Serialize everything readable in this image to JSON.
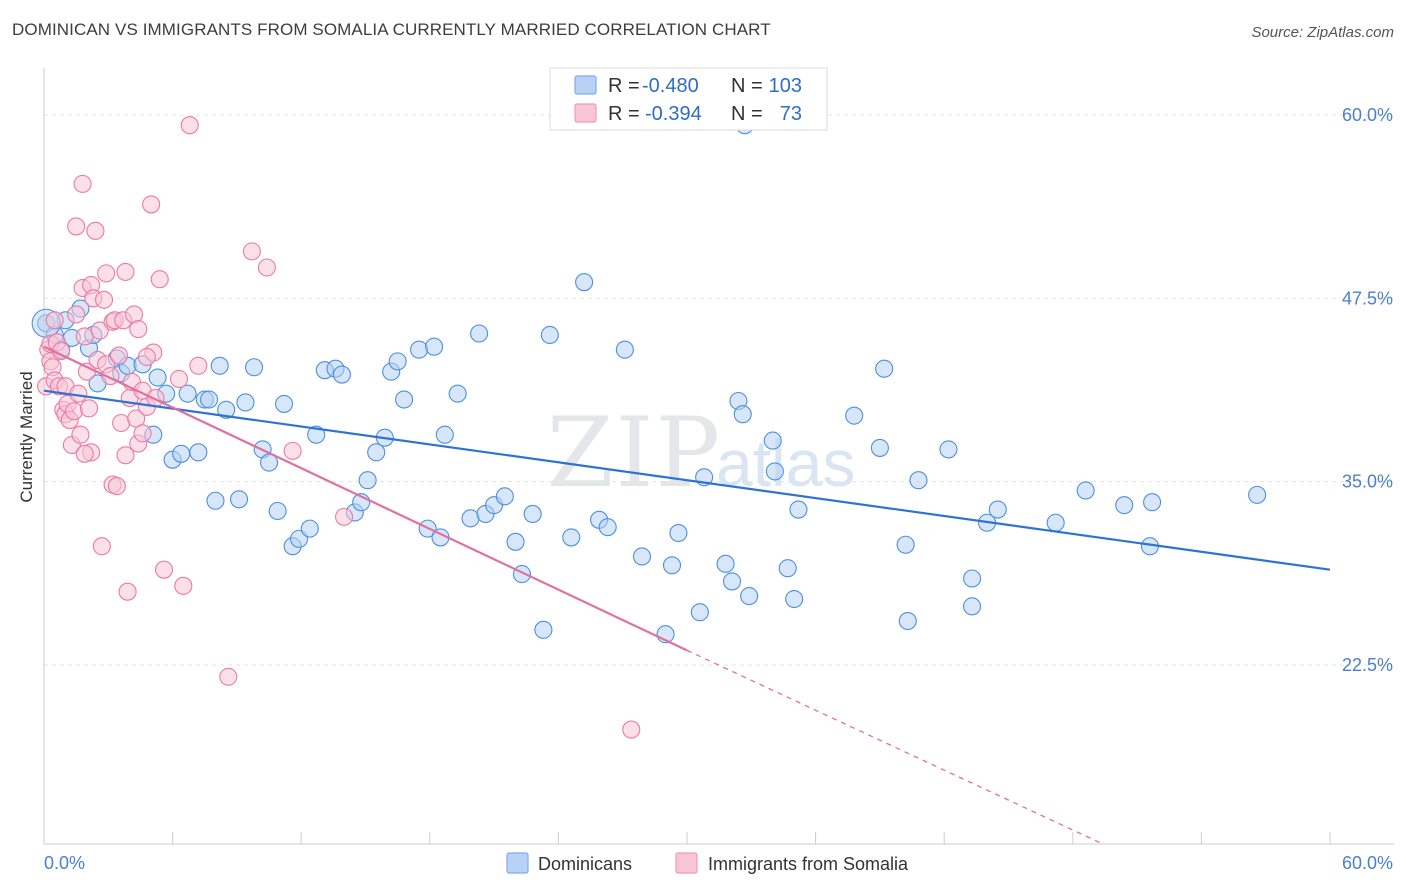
{
  "header": {
    "title": "DOMINICAN VS IMMIGRANTS FROM SOMALIA CURRENTLY MARRIED CORRELATION CHART",
    "source": "Source: ZipAtlas.com"
  },
  "watermark": {
    "part1": "ZIP",
    "part2": "atlas"
  },
  "legend_box": {
    "rows": [
      {
        "r_label": "R = ",
        "r_value": "-0.480",
        "n_label": "N = ",
        "n_value": "103",
        "color": "#7eaee9"
      },
      {
        "r_label": "R = ",
        "r_value": "-0.394",
        "n_label": "N = ",
        "n_value": "73",
        "color": "#f19ab8"
      }
    ]
  },
  "chart_data": {
    "type": "scatter",
    "title": "DOMINICAN VS IMMIGRANTS FROM SOMALIA CURRENTLY MARRIED CORRELATION CHART",
    "xlabel": "",
    "ylabel": "Currently Married",
    "xlim": [
      0,
      60
    ],
    "ylim": [
      10.3,
      63.2
    ],
    "x_tick_labels": [
      "0.0%",
      "60.0%"
    ],
    "y_ticks": [
      22.5,
      35.0,
      47.5,
      60.0
    ],
    "y_tick_labels": [
      "22.5%",
      "35.0%",
      "47.5%",
      "60.0%"
    ],
    "grid": true,
    "legend_position": "bottom",
    "colors": {
      "blue": "#4d8fdf",
      "blue_fill": "#b7d2f4",
      "pink": "#ec7aa4",
      "pink_fill": "#f8c6d7",
      "blue_line": "#2f73d2",
      "pink_line": "#e2709c",
      "axis_text": "#4a7fd0"
    },
    "series": [
      {
        "name": "Dominicans",
        "r": -0.48,
        "n": 103,
        "trend": {
          "x0": 0,
          "y0": 41.2,
          "x1": 60,
          "y1": 29.0
        },
        "points": [
          [
            0.1,
            45.8
          ],
          [
            0.5,
            45.0
          ],
          [
            0.8,
            44.0
          ],
          [
            1.0,
            46.0
          ],
          [
            1.3,
            44.8
          ],
          [
            1.7,
            46.8
          ],
          [
            2.1,
            44.1
          ],
          [
            2.3,
            45.0
          ],
          [
            2.5,
            41.7
          ],
          [
            3.4,
            43.4
          ],
          [
            3.6,
            42.4
          ],
          [
            3.9,
            42.9
          ],
          [
            4.6,
            43.0
          ],
          [
            5.1,
            38.2
          ],
          [
            5.3,
            42.1
          ],
          [
            5.7,
            41.0
          ],
          [
            6.0,
            36.5
          ],
          [
            6.4,
            36.9
          ],
          [
            6.7,
            41.0
          ],
          [
            7.2,
            37.0
          ],
          [
            7.5,
            40.6
          ],
          [
            7.7,
            40.6
          ],
          [
            8.0,
            33.7
          ],
          [
            8.2,
            42.9
          ],
          [
            8.5,
            39.9
          ],
          [
            9.1,
            33.8
          ],
          [
            9.4,
            40.4
          ],
          [
            9.8,
            42.8
          ],
          [
            10.2,
            37.2
          ],
          [
            10.5,
            36.3
          ],
          [
            10.9,
            33.0
          ],
          [
            11.2,
            40.3
          ],
          [
            11.6,
            30.6
          ],
          [
            11.9,
            31.1
          ],
          [
            12.4,
            31.8
          ],
          [
            12.7,
            38.2
          ],
          [
            13.1,
            42.6
          ],
          [
            13.6,
            42.7
          ],
          [
            13.9,
            42.3
          ],
          [
            14.5,
            32.9
          ],
          [
            14.8,
            33.6
          ],
          [
            15.1,
            35.1
          ],
          [
            15.5,
            37.0
          ],
          [
            15.9,
            38.0
          ],
          [
            16.2,
            42.5
          ],
          [
            16.5,
            43.2
          ],
          [
            16.8,
            40.6
          ],
          [
            17.5,
            44.0
          ],
          [
            17.9,
            31.8
          ],
          [
            18.2,
            44.2
          ],
          [
            18.5,
            31.2
          ],
          [
            18.7,
            38.2
          ],
          [
            19.3,
            41.0
          ],
          [
            19.9,
            32.5
          ],
          [
            20.3,
            45.1
          ],
          [
            20.6,
            32.8
          ],
          [
            21.0,
            33.4
          ],
          [
            21.5,
            34.0
          ],
          [
            22.0,
            30.9
          ],
          [
            22.3,
            28.7
          ],
          [
            22.8,
            32.8
          ],
          [
            23.3,
            24.9
          ],
          [
            23.6,
            45.0
          ],
          [
            24.6,
            31.2
          ],
          [
            25.2,
            48.6
          ],
          [
            25.9,
            32.4
          ],
          [
            26.3,
            31.9
          ],
          [
            27.1,
            44.0
          ],
          [
            27.9,
            29.9
          ],
          [
            29.0,
            24.6
          ],
          [
            29.3,
            29.3
          ],
          [
            29.6,
            31.5
          ],
          [
            30.6,
            26.1
          ],
          [
            30.8,
            35.3
          ],
          [
            31.8,
            29.4
          ],
          [
            32.1,
            28.2
          ],
          [
            32.4,
            40.5
          ],
          [
            32.6,
            39.6
          ],
          [
            32.7,
            59.3
          ],
          [
            32.9,
            27.2
          ],
          [
            34.0,
            37.8
          ],
          [
            34.1,
            35.7
          ],
          [
            34.7,
            29.1
          ],
          [
            35.0,
            27.0
          ],
          [
            35.2,
            33.1
          ],
          [
            37.8,
            39.5
          ],
          [
            39.0,
            37.3
          ],
          [
            39.2,
            42.7
          ],
          [
            40.2,
            30.7
          ],
          [
            40.3,
            25.5
          ],
          [
            40.8,
            35.1
          ],
          [
            42.2,
            37.2
          ],
          [
            43.3,
            28.4
          ],
          [
            43.3,
            26.5
          ],
          [
            44.0,
            32.2
          ],
          [
            44.5,
            33.1
          ],
          [
            47.2,
            32.2
          ],
          [
            48.6,
            34.4
          ],
          [
            50.4,
            33.4
          ],
          [
            51.6,
            30.6
          ],
          [
            51.7,
            33.6
          ],
          [
            56.6,
            34.1
          ]
        ]
      },
      {
        "name": "Immigrants from Somalia",
        "r": -0.394,
        "n": 73,
        "trend": {
          "x0": 0,
          "y0": 44.2,
          "x1": 30.0,
          "y1": 23.5,
          "dashed_to_x": 49.4,
          "dashed_to_y": 10.3
        },
        "points": [
          [
            0.1,
            41.5
          ],
          [
            0.2,
            44.0
          ],
          [
            0.3,
            43.2
          ],
          [
            0.3,
            44.4
          ],
          [
            0.4,
            42.8
          ],
          [
            0.5,
            41.9
          ],
          [
            0.6,
            44.5
          ],
          [
            0.7,
            41.5
          ],
          [
            0.8,
            43.9
          ],
          [
            0.9,
            39.9
          ],
          [
            1.0,
            39.6
          ],
          [
            1.0,
            41.5
          ],
          [
            1.1,
            40.3
          ],
          [
            1.2,
            39.2
          ],
          [
            1.3,
            37.5
          ],
          [
            1.4,
            39.8
          ],
          [
            1.5,
            46.4
          ],
          [
            1.5,
            52.4
          ],
          [
            1.6,
            41.0
          ],
          [
            1.7,
            38.2
          ],
          [
            1.8,
            48.2
          ],
          [
            1.8,
            55.3
          ],
          [
            1.9,
            44.9
          ],
          [
            2.0,
            42.5
          ],
          [
            2.1,
            40.0
          ],
          [
            2.2,
            48.4
          ],
          [
            2.2,
            37.0
          ],
          [
            2.3,
            47.5
          ],
          [
            2.4,
            52.1
          ],
          [
            2.5,
            43.3
          ],
          [
            2.6,
            45.3
          ],
          [
            2.7,
            30.6
          ],
          [
            2.8,
            47.4
          ],
          [
            2.9,
            43.0
          ],
          [
            2.9,
            49.2
          ],
          [
            3.1,
            42.2
          ],
          [
            3.2,
            45.9
          ],
          [
            3.2,
            34.8
          ],
          [
            3.3,
            46.0
          ],
          [
            3.4,
            34.7
          ],
          [
            3.5,
            43.6
          ],
          [
            3.6,
            39.0
          ],
          [
            3.7,
            46.0
          ],
          [
            3.8,
            49.3
          ],
          [
            3.8,
            36.8
          ],
          [
            3.9,
            27.5
          ],
          [
            4.0,
            40.7
          ],
          [
            4.1,
            41.8
          ],
          [
            4.2,
            46.4
          ],
          [
            4.3,
            39.3
          ],
          [
            4.4,
            37.6
          ],
          [
            4.4,
            45.4
          ],
          [
            4.6,
            41.2
          ],
          [
            4.6,
            38.3
          ],
          [
            4.8,
            40.1
          ],
          [
            5.0,
            53.9
          ],
          [
            5.1,
            43.8
          ],
          [
            5.2,
            40.7
          ],
          [
            5.4,
            48.8
          ],
          [
            5.6,
            29.0
          ],
          [
            6.3,
            42.0
          ],
          [
            6.5,
            27.9
          ],
          [
            6.8,
            59.3
          ],
          [
            7.2,
            42.9
          ],
          [
            8.6,
            21.7
          ],
          [
            9.7,
            50.7
          ],
          [
            10.4,
            49.6
          ],
          [
            11.6,
            37.1
          ],
          [
            14.0,
            32.6
          ],
          [
            27.4,
            18.1
          ],
          [
            4.8,
            43.5
          ],
          [
            1.9,
            36.9
          ],
          [
            0.5,
            46.0
          ]
        ]
      }
    ]
  }
}
